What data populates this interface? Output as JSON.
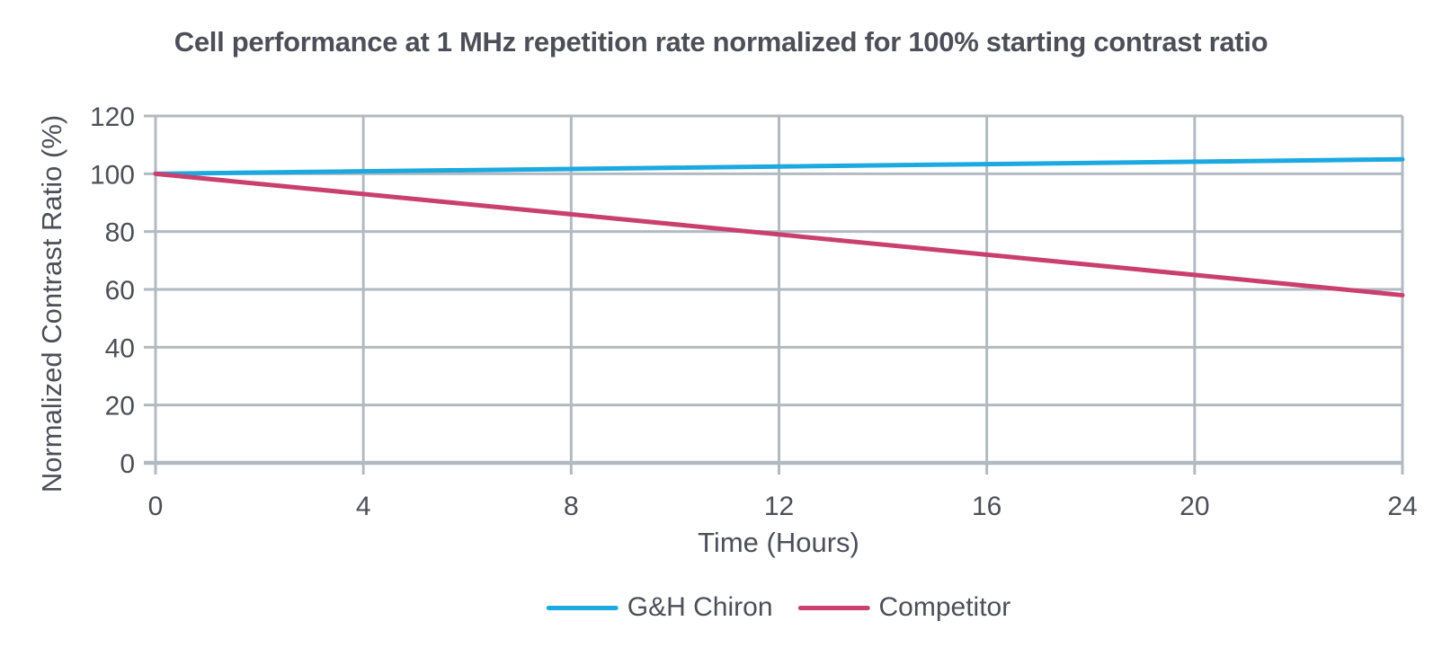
{
  "colors": {
    "text": "#4d4f58",
    "grid": "#b2bac1",
    "background": "#ffffff",
    "series_blue": "#1ba9e0",
    "series_pink": "#c9406e"
  },
  "chart_data": {
    "type": "line",
    "title": "Cell performance at 1 MHz repetition rate normalized for 100% starting contrast ratio",
    "xlabel": "Time (Hours)",
    "ylabel": "Normalized Contrast Ratio (%)",
    "xlim": [
      0,
      24
    ],
    "ylim": [
      0,
      120
    ],
    "x_ticks": [
      0,
      4,
      8,
      12,
      16,
      20,
      24
    ],
    "y_ticks": [
      0,
      20,
      40,
      60,
      80,
      100,
      120
    ],
    "grid": true,
    "legend_position": "bottom",
    "series": [
      {
        "name": "G&H Chiron",
        "color": "#1ba9e0",
        "x": [
          0,
          24
        ],
        "y": [
          100,
          105
        ]
      },
      {
        "name": "Competitor",
        "color": "#c9406e",
        "x": [
          0,
          24
        ],
        "y": [
          100,
          58
        ]
      }
    ]
  }
}
